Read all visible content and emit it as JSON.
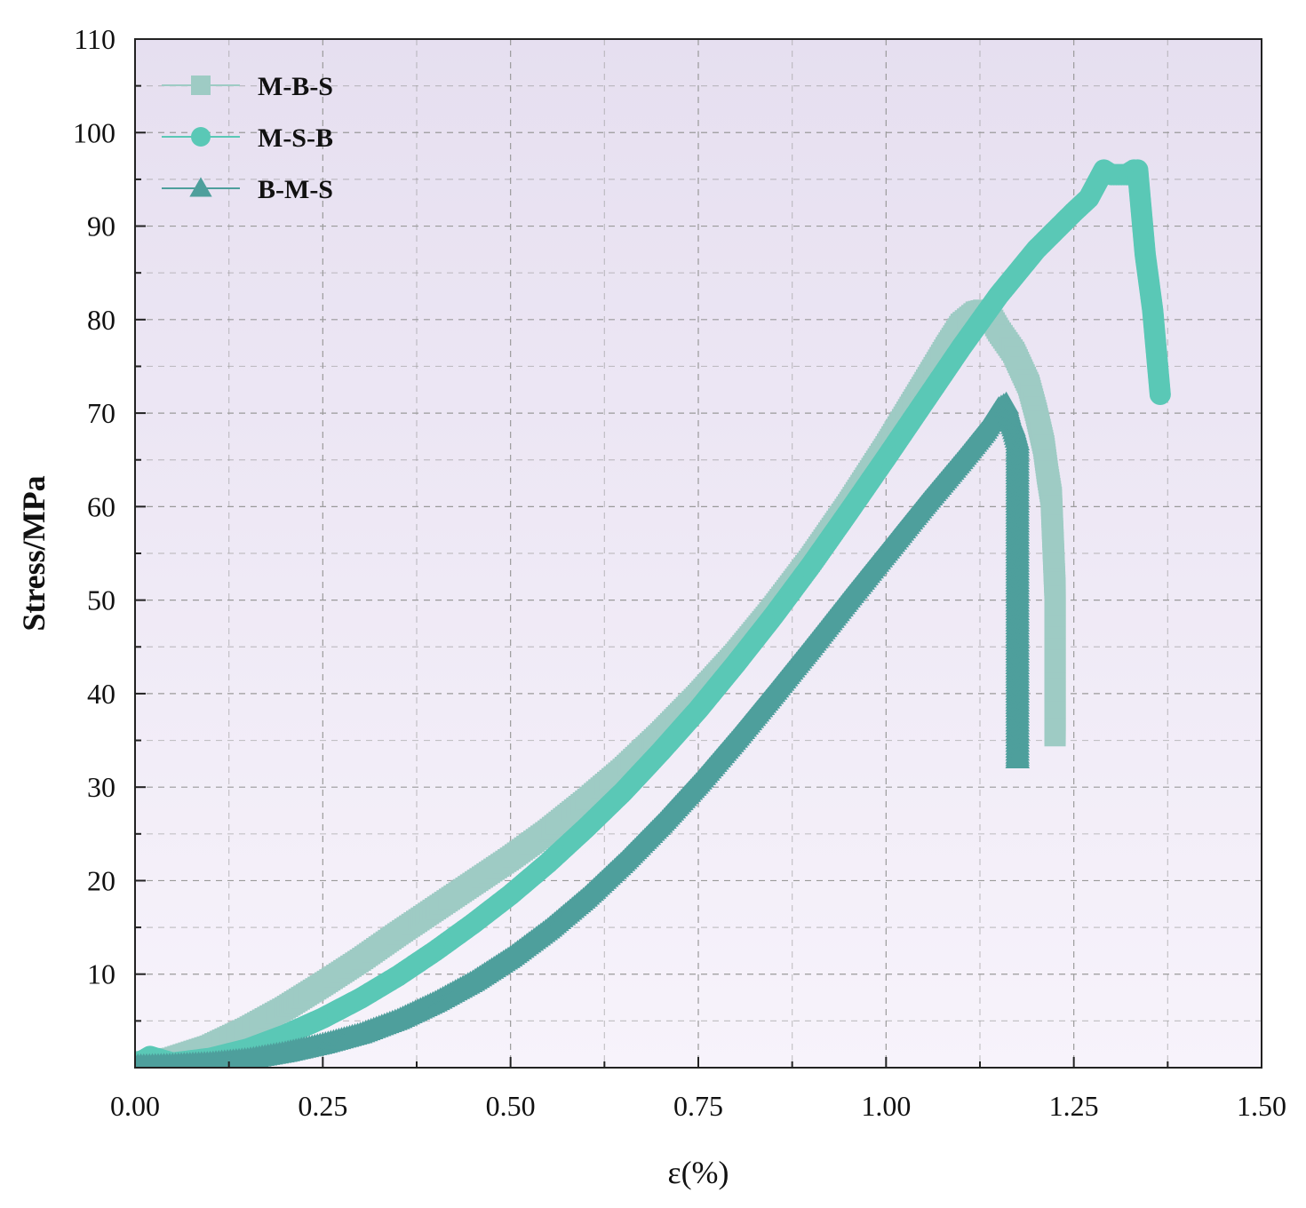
{
  "chart_data": {
    "type": "scatter",
    "title": "",
    "xlabel": "ε(%)",
    "ylabel": "Stress/MPa",
    "xlim": [
      0,
      1.5
    ],
    "ylim": [
      0,
      110
    ],
    "xticks": [
      "0.00",
      "0.25",
      "0.50",
      "0.75",
      "1.00",
      "1.25",
      "1.50"
    ],
    "yticks": [
      "10",
      "20",
      "30",
      "40",
      "50",
      "60",
      "70",
      "80",
      "90",
      "100",
      "110"
    ],
    "grid": true,
    "legend_position": "top-left",
    "background_gradient": [
      "#e6dff0",
      "#f7f3fb"
    ],
    "series": [
      {
        "name": "M-B-S",
        "marker": "square",
        "color": "#9ecbc4",
        "x": [
          0.0,
          0.05,
          0.1,
          0.15,
          0.2,
          0.25,
          0.3,
          0.35,
          0.4,
          0.45,
          0.5,
          0.55,
          0.6,
          0.65,
          0.7,
          0.75,
          0.8,
          0.85,
          0.9,
          0.95,
          1.0,
          1.05,
          1.08,
          1.1,
          1.12,
          1.13,
          1.14,
          1.15,
          1.17,
          1.19,
          1.2,
          1.21,
          1.215,
          1.22,
          1.225,
          1.225,
          1.225,
          1.225,
          1.225,
          1.225
        ],
        "y": [
          0.5,
          1.0,
          2.3,
          4.2,
          6.4,
          8.9,
          11.5,
          14.3,
          17.0,
          19.7,
          22.4,
          25.3,
          28.5,
          31.9,
          35.7,
          39.8,
          44.2,
          49.1,
          54.4,
          60.2,
          66.4,
          73.0,
          77.0,
          79.5,
          80.8,
          81.0,
          80.2,
          78.8,
          76.5,
          73.0,
          70.0,
          66.5,
          63.5,
          61.0,
          51.0,
          46.0,
          44.5,
          38.0,
          36.0,
          35.5
        ]
      },
      {
        "name": "M-S-B",
        "marker": "circle",
        "color": "#5ac8b6",
        "x": [
          0.0,
          0.02,
          0.05,
          0.1,
          0.15,
          0.2,
          0.25,
          0.3,
          0.35,
          0.4,
          0.45,
          0.5,
          0.55,
          0.6,
          0.65,
          0.7,
          0.75,
          0.8,
          0.85,
          0.9,
          0.95,
          1.0,
          1.05,
          1.1,
          1.15,
          1.2,
          1.25,
          1.27,
          1.28,
          1.29,
          1.3,
          1.31,
          1.32,
          1.33,
          1.335,
          1.345,
          1.355,
          1.365
        ],
        "y": [
          0.3,
          1.2,
          0.5,
          1.0,
          2.0,
          3.5,
          5.3,
          7.4,
          9.8,
          12.5,
          15.4,
          18.5,
          21.9,
          25.6,
          29.5,
          33.8,
          38.3,
          43.2,
          48.3,
          53.7,
          59.4,
          65.2,
          71.1,
          77.0,
          82.6,
          87.5,
          91.5,
          93.0,
          94.5,
          96.0,
          95.5,
          95.5,
          95.5,
          96.0,
          96.0,
          87.0,
          81.0,
          72.0
        ]
      },
      {
        "name": "B-M-S",
        "marker": "triangle",
        "color": "#4e9f9c",
        "x": [
          0.0,
          0.05,
          0.1,
          0.15,
          0.2,
          0.25,
          0.3,
          0.35,
          0.4,
          0.45,
          0.5,
          0.55,
          0.6,
          0.65,
          0.7,
          0.75,
          0.8,
          0.85,
          0.9,
          0.95,
          1.0,
          1.05,
          1.1,
          1.13,
          1.15,
          1.16,
          1.165,
          1.17,
          1.175,
          1.175,
          1.175,
          1.175,
          1.175,
          1.175
        ],
        "y": [
          0.2,
          0.3,
          0.5,
          0.9,
          1.6,
          2.5,
          3.6,
          5.1,
          7.0,
          9.2,
          11.8,
          14.8,
          18.2,
          22.0,
          26.1,
          30.5,
          35.2,
          40.1,
          45.1,
          50.2,
          55.2,
          60.2,
          65.0,
          68.0,
          70.5,
          71.0,
          69.5,
          68.5,
          67.0,
          52.5,
          38.5,
          36.0,
          33.5,
          33.0
        ]
      }
    ]
  }
}
